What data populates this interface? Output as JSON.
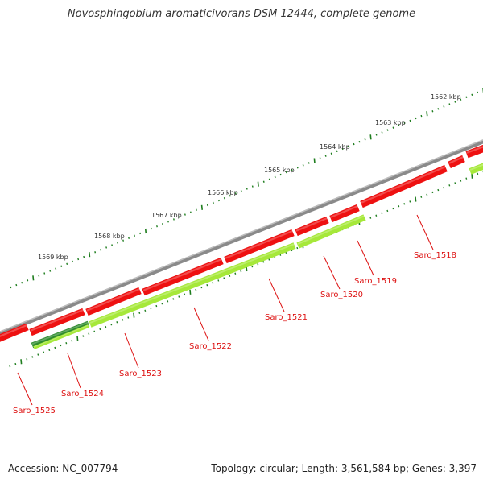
{
  "title": "Novosphingobium aromaticivorans DSM 12444, complete genome",
  "footer": {
    "accession": "Accession: NC_007794",
    "topology": "Topology: circular; Length: 3,561,584 bp; Genes: 3,397"
  },
  "colors": {
    "backbone": "#8a8a8a",
    "forward_gene": "#ee1111",
    "reverse_gene": "#a6e83a",
    "reverse_gene_highlight": "#2e8b2e",
    "tick": "#1e7d1e",
    "label": "#dd1111"
  },
  "ticks": {
    "labels": [
      "1562 kbp",
      "1563 kbp",
      "1564 kbp",
      "1565 kbp",
      "1566 kbp",
      "1567 kbp",
      "1568 kbp",
      "1569 kbp"
    ]
  },
  "genes": [
    {
      "label": "Saro_1518",
      "strand": "forward"
    },
    {
      "label": "Saro_1519",
      "strand": "reverse"
    },
    {
      "label": "Saro_1520",
      "strand": "forward"
    },
    {
      "label": "Saro_1521",
      "strand": "forward"
    },
    {
      "label": "Saro_1522",
      "strand": "reverse"
    },
    {
      "label": "Saro_1523",
      "strand": "forward"
    },
    {
      "label": "Saro_1524",
      "strand": "reverse"
    },
    {
      "label": "Saro_1525",
      "strand": "forward"
    }
  ]
}
